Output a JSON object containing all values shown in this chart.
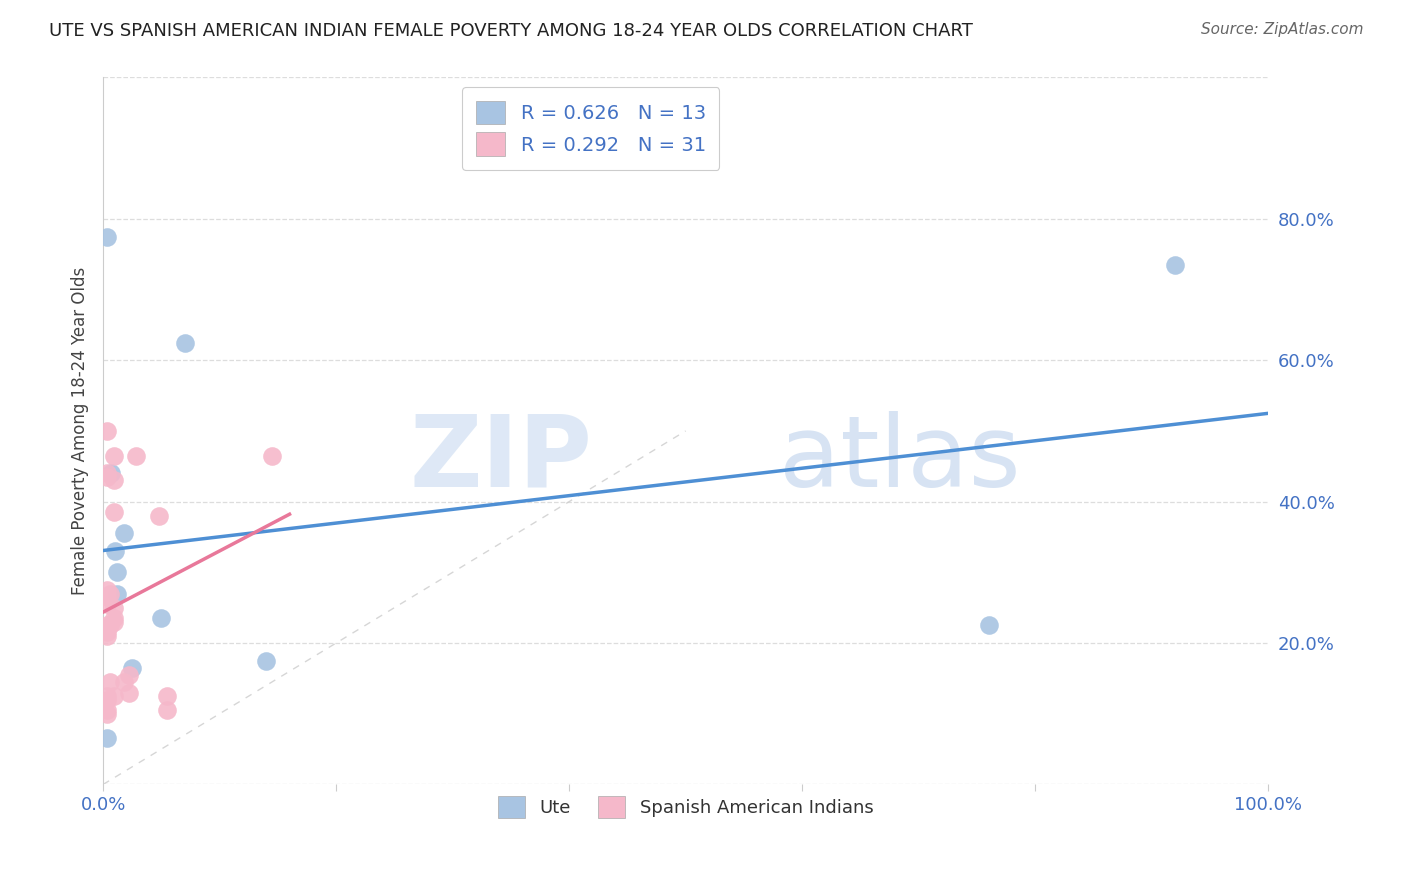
{
  "title": "UTE VS SPANISH AMERICAN INDIAN FEMALE POVERTY AMONG 18-24 YEAR OLDS CORRELATION CHART",
  "source": "Source: ZipAtlas.com",
  "ylabel": "Female Poverty Among 18-24 Year Olds",
  "xlim": [
    0,
    1.0
  ],
  "ylim": [
    0,
    1.0
  ],
  "xticks": [
    0.0,
    0.2,
    0.4,
    0.6,
    0.8,
    1.0
  ],
  "xticklabels": [
    "0.0%",
    "",
    "",
    "",
    "",
    "100.0%"
  ],
  "yticks": [
    0.0,
    0.2,
    0.4,
    0.6,
    0.8,
    1.0
  ],
  "right_yticklabels": [
    "",
    "20.0%",
    "40.0%",
    "60.0%",
    "80.0%",
    ""
  ],
  "watermark_zip": "ZIP",
  "watermark_atlas": "atlas",
  "ute_R": 0.626,
  "ute_N": 13,
  "sai_R": 0.292,
  "sai_N": 31,
  "ute_color": "#a8c4e2",
  "sai_color": "#f5b8ca",
  "trend_ute_color": "#4e8fd4",
  "trend_sai_color": "#e8789a",
  "diagonal_color": "#cccccc",
  "ute_x": [
    0.003,
    0.003,
    0.007,
    0.01,
    0.012,
    0.012,
    0.018,
    0.025,
    0.05,
    0.07,
    0.14,
    0.76,
    0.92
  ],
  "ute_y": [
    0.775,
    0.065,
    0.44,
    0.33,
    0.3,
    0.27,
    0.355,
    0.165,
    0.235,
    0.625,
    0.175,
    0.225,
    0.735
  ],
  "sai_x": [
    0.003,
    0.003,
    0.003,
    0.003,
    0.003,
    0.003,
    0.003,
    0.003,
    0.003,
    0.003,
    0.003,
    0.003,
    0.003,
    0.006,
    0.006,
    0.006,
    0.009,
    0.009,
    0.009,
    0.009,
    0.009,
    0.009,
    0.009,
    0.018,
    0.022,
    0.022,
    0.028,
    0.048,
    0.055,
    0.055,
    0.145
  ],
  "sai_y": [
    0.5,
    0.44,
    0.435,
    0.275,
    0.265,
    0.255,
    0.225,
    0.215,
    0.21,
    0.125,
    0.12,
    0.105,
    0.1,
    0.27,
    0.225,
    0.145,
    0.465,
    0.43,
    0.385,
    0.25,
    0.235,
    0.23,
    0.125,
    0.145,
    0.155,
    0.13,
    0.465,
    0.38,
    0.125,
    0.105,
    0.465
  ],
  "legend_ute_label": "Ute",
  "legend_sai_label": "Spanish American Indians",
  "background_color": "#ffffff",
  "grid_color": "#dddddd",
  "trend_ute_x0": 0.0,
  "trend_ute_x1": 1.0,
  "trend_sai_x0": 0.0,
  "trend_sai_x1": 0.16
}
